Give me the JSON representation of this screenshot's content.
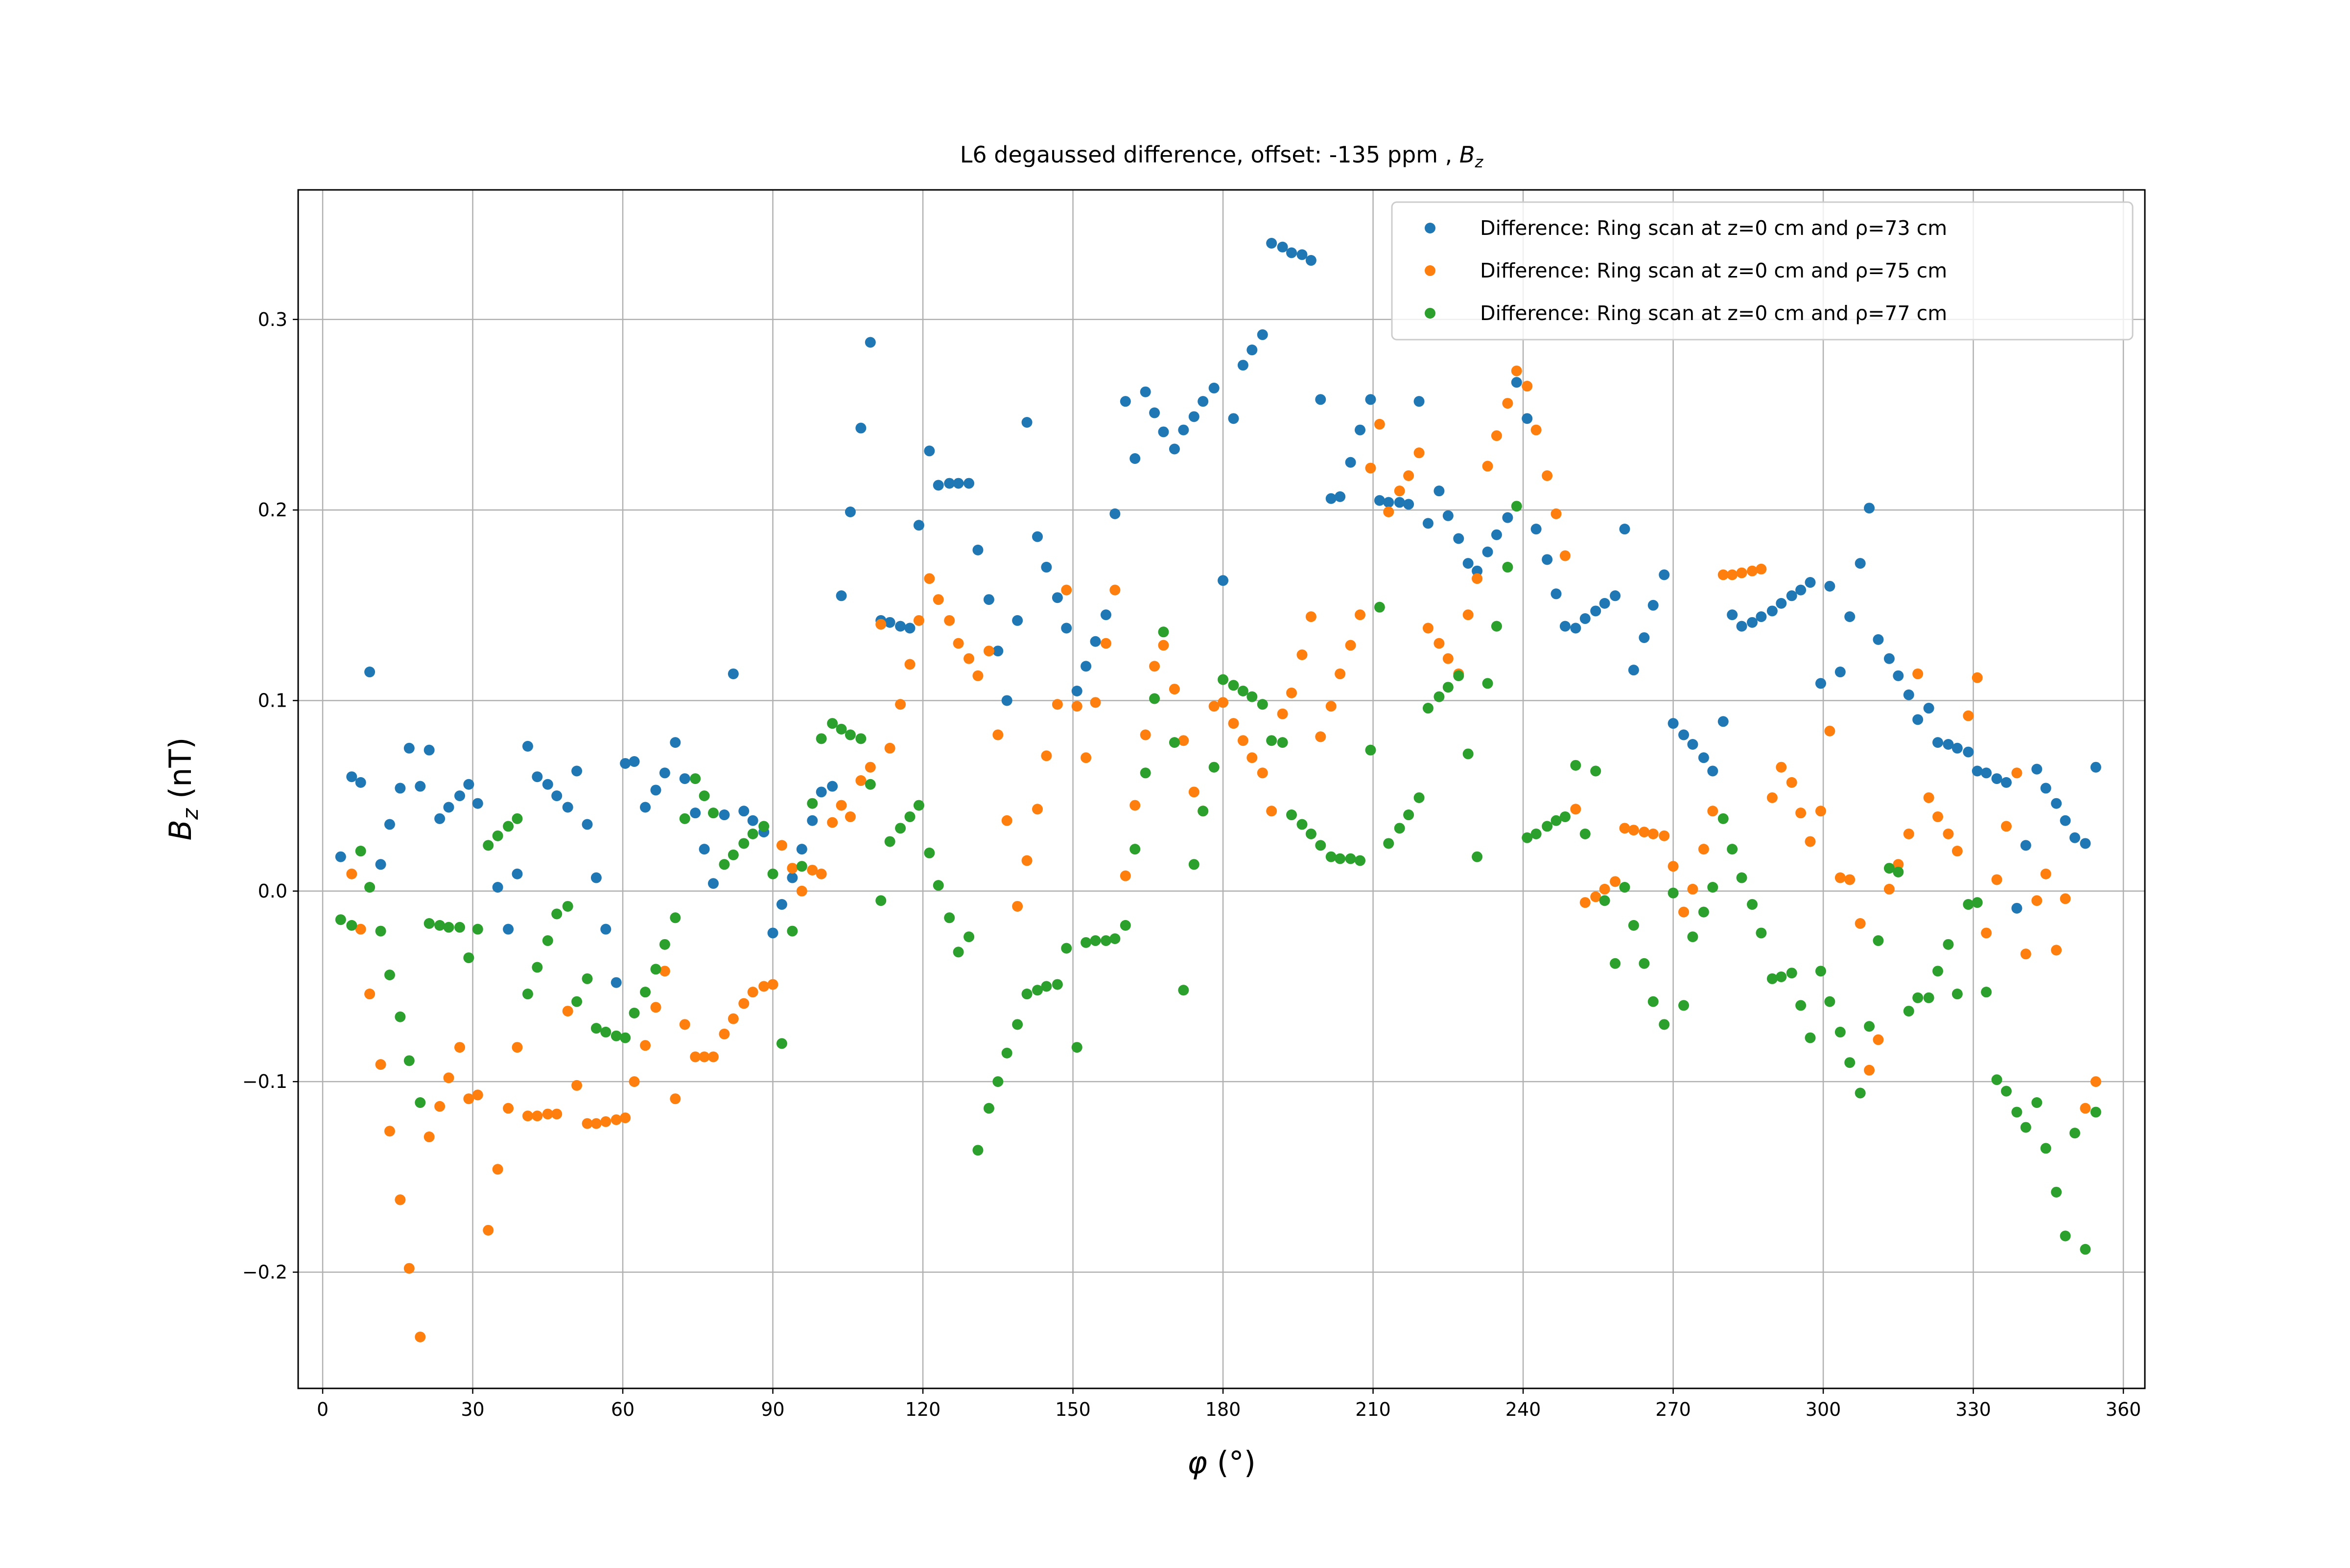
{
  "chart_data": {
    "type": "scatter",
    "title": {
      "text": "L6 degaussed difference, offset: -135 ppm , ",
      "symbol": "B",
      "subscript": "z"
    },
    "xlabel": {
      "symbol": "φ",
      "text": " (°)"
    },
    "ylabel": {
      "symbol": "B",
      "subscript": "z",
      "text": " (nT)"
    },
    "xlim": [
      -4.9,
      364.3
    ],
    "ylim": [
      -0.261,
      0.368
    ],
    "xticks": [
      0,
      30,
      60,
      90,
      120,
      150,
      180,
      210,
      240,
      270,
      300,
      330,
      360
    ],
    "yticks": [
      {
        "value": -0.2,
        "label": "−0.2"
      },
      {
        "value": -0.1,
        "label": "−0.1"
      },
      {
        "value": 0,
        "label": "0.0"
      },
      0.1,
      0.2,
      0.3
    ],
    "grid": true,
    "legend": "upper right",
    "series": [
      {
        "name": "Difference: Ring scan at z=0 cm and ρ=73 cm",
        "color": "#1f77b4",
        "x": [
          3.6,
          5.8,
          7.6,
          9.4,
          11.6,
          13.4,
          15.5,
          17.3,
          19.5,
          21.3,
          23.4,
          25.2,
          27.4,
          29.2,
          31.0,
          35.0,
          37.1,
          38.9,
          41.0,
          42.9,
          45.0,
          46.8,
          49.0,
          50.8,
          52.9,
          54.7,
          56.6,
          58.7,
          60.5,
          62.3,
          64.5,
          66.6,
          68.4,
          70.5,
          72.4,
          74.5,
          76.3,
          78.1,
          80.3,
          82.1,
          84.2,
          86.0,
          88.2,
          90.0,
          91.8,
          93.9,
          95.8,
          97.9,
          99.7,
          101.9,
          103.7,
          105.5,
          107.6,
          109.5,
          111.6,
          113.4,
          115.5,
          117.4,
          119.2,
          121.3,
          123.1,
          125.3,
          127.1,
          129.2,
          131.0,
          133.2,
          135.0,
          136.8,
          138.9,
          140.8,
          142.9,
          144.7,
          146.9,
          148.7,
          150.8,
          152.6,
          154.5,
          156.6,
          158.4,
          160.5,
          162.4,
          164.5,
          166.3,
          168.1,
          170.3,
          172.1,
          174.2,
          176.0,
          178.2,
          180.0,
          182.1,
          184.0,
          185.8,
          187.9,
          189.7,
          191.9,
          193.7,
          195.8,
          197.6,
          199.5,
          201.6,
          203.4,
          205.5,
          207.4,
          209.5,
          211.3,
          213.1,
          215.3,
          217.1,
          219.2,
          221.0,
          223.2,
          225.0,
          227.1,
          229.0,
          230.8,
          232.9,
          234.7,
          236.9,
          238.7,
          240.8,
          242.6,
          244.8,
          246.6,
          248.4,
          250.5,
          252.4,
          254.5,
          256.3,
          258.4,
          260.3,
          262.1,
          264.2,
          266.0,
          268.2,
          270.0,
          272.1,
          273.9,
          276.1,
          277.9,
          280.0,
          281.8,
          283.7,
          285.8,
          287.6,
          289.8,
          291.6,
          293.7,
          295.5,
          297.4,
          299.5,
          301.3,
          303.4,
          305.3,
          307.4,
          309.2,
          311.0,
          313.2,
          315.0,
          317.1,
          318.9,
          321.1,
          322.9,
          325.0,
          326.8,
          329.0,
          330.8,
          332.6,
          334.7,
          336.6,
          338.7,
          340.5,
          342.7,
          344.5,
          346.6,
          348.4,
          350.3,
          352.4,
          354.5
        ],
        "values": [
          0.018,
          0.06,
          0.057,
          0.115,
          0.014,
          0.035,
          0.054,
          0.075,
          0.055,
          0.074,
          0.038,
          0.044,
          0.05,
          0.056,
          0.046,
          0.002,
          -0.02,
          0.009,
          0.076,
          0.06,
          0.056,
          0.05,
          0.044,
          0.063,
          0.035,
          0.007,
          -0.02,
          -0.048,
          0.067,
          0.068,
          0.044,
          0.053,
          0.062,
          0.078,
          0.059,
          0.041,
          0.022,
          0.004,
          0.04,
          0.114,
          0.042,
          0.037,
          0.031,
          -0.022,
          -0.007,
          0.007,
          0.022,
          0.037,
          0.052,
          0.055,
          0.155,
          0.199,
          0.243,
          0.288,
          0.142,
          0.141,
          0.139,
          0.138,
          0.192,
          0.231,
          0.213,
          0.214,
          0.214,
          0.214,
          0.179,
          0.153,
          0.126,
          0.1,
          0.142,
          0.246,
          0.186,
          0.17,
          0.154,
          0.138,
          0.105,
          0.118,
          0.131,
          0.145,
          0.198,
          0.257,
          0.227,
          0.262,
          0.251,
          0.241,
          0.232,
          0.242,
          0.249,
          0.257,
          0.264,
          0.163,
          0.248,
          0.276,
          0.284,
          0.292,
          0.34,
          0.338,
          0.335,
          0.334,
          0.331,
          0.258,
          0.206,
          0.207,
          0.225,
          0.242,
          0.258,
          0.205,
          0.204,
          0.204,
          0.203,
          0.257,
          0.193,
          0.21,
          0.197,
          0.185,
          0.172,
          0.168,
          0.178,
          0.187,
          0.196,
          0.267,
          0.248,
          0.19,
          0.174,
          0.156,
          0.139,
          0.138,
          0.143,
          0.147,
          0.151,
          0.155,
          0.19,
          0.116,
          0.133,
          0.15,
          0.166,
          0.088,
          0.082,
          0.077,
          0.07,
          0.063,
          0.089,
          0.145,
          0.139,
          0.141,
          0.144,
          0.147,
          0.151,
          0.155,
          0.158,
          0.162,
          0.109,
          0.16,
          0.115,
          0.144,
          0.172,
          0.201,
          0.132,
          0.122,
          0.113,
          0.103,
          0.09,
          0.096,
          0.078,
          0.077,
          0.075,
          0.073,
          0.063,
          0.062,
          0.059,
          0.057,
          -0.009,
          0.024,
          0.064,
          0.054,
          0.046,
          0.037,
          0.028,
          0.025,
          0.065
        ]
      },
      {
        "name": "Difference: Ring scan at z=0 cm and ρ=75 cm",
        "color": "#ff7f0e",
        "x": [
          5.8,
          7.6,
          9.4,
          11.6,
          13.4,
          15.5,
          17.3,
          19.5,
          21.3,
          23.4,
          25.2,
          27.4,
          29.2,
          31.0,
          33.1,
          35.0,
          37.1,
          38.9,
          41.0,
          42.9,
          45.0,
          46.8,
          49.0,
          50.8,
          52.9,
          54.7,
          56.6,
          58.7,
          60.5,
          62.3,
          64.5,
          66.6,
          68.4,
          70.5,
          72.4,
          74.5,
          76.3,
          78.1,
          80.3,
          82.1,
          84.2,
          86.0,
          88.2,
          90.0,
          91.8,
          93.9,
          95.8,
          97.9,
          99.7,
          101.9,
          103.7,
          105.5,
          107.6,
          109.5,
          111.6,
          113.4,
          115.5,
          117.4,
          119.2,
          121.3,
          123.1,
          125.3,
          127.1,
          129.2,
          131.0,
          133.2,
          135.0,
          136.8,
          138.9,
          140.8,
          142.9,
          144.7,
          146.9,
          148.7,
          150.8,
          152.6,
          154.5,
          156.6,
          158.4,
          160.5,
          162.4,
          164.5,
          166.3,
          168.1,
          170.3,
          172.1,
          174.2,
          176.0,
          178.2,
          180.0,
          182.1,
          184.0,
          185.8,
          187.9,
          189.7,
          191.9,
          193.7,
          195.8,
          197.6,
          199.5,
          201.6,
          203.4,
          205.5,
          207.4,
          209.5,
          211.3,
          213.1,
          215.3,
          217.1,
          219.2,
          221.0,
          223.2,
          225.0,
          227.1,
          229.0,
          230.8,
          232.9,
          234.7,
          236.9,
          238.7,
          240.8,
          242.6,
          244.8,
          246.6,
          248.4,
          250.5,
          252.4,
          254.5,
          256.3,
          258.4,
          260.3,
          262.1,
          264.2,
          266.0,
          268.2,
          270.0,
          272.1,
          273.9,
          276.1,
          277.9,
          280.0,
          281.8,
          283.7,
          285.8,
          287.6,
          289.8,
          291.6,
          293.7,
          295.5,
          297.4,
          299.5,
          301.3,
          303.4,
          305.3,
          307.4,
          309.2,
          311.0,
          313.2,
          315.0,
          317.1,
          318.9,
          321.1,
          322.9,
          325.0,
          326.8,
          329.0,
          330.8,
          332.6,
          334.7,
          336.6,
          338.7,
          340.5,
          342.7,
          344.5,
          346.6,
          348.4,
          352.4,
          354.5
        ],
        "values": [
          0.009,
          -0.02,
          -0.054,
          -0.091,
          -0.126,
          -0.162,
          -0.198,
          -0.234,
          -0.129,
          -0.113,
          -0.098,
          -0.082,
          -0.109,
          -0.107,
          -0.178,
          -0.146,
          -0.114,
          -0.082,
          -0.118,
          -0.118,
          -0.117,
          -0.117,
          -0.063,
          -0.102,
          -0.122,
          -0.122,
          -0.121,
          -0.12,
          -0.119,
          -0.1,
          -0.081,
          -0.061,
          -0.042,
          -0.109,
          -0.07,
          -0.087,
          -0.087,
          -0.087,
          -0.075,
          -0.067,
          -0.059,
          -0.053,
          -0.05,
          -0.049,
          0.024,
          0.012,
          0.0,
          0.011,
          0.009,
          0.036,
          0.045,
          0.039,
          0.058,
          0.065,
          0.14,
          0.075,
          0.098,
          0.119,
          0.142,
          0.164,
          0.153,
          0.142,
          0.13,
          0.122,
          0.113,
          0.126,
          0.082,
          0.037,
          -0.008,
          0.016,
          0.043,
          0.071,
          0.098,
          0.158,
          0.097,
          0.07,
          0.099,
          0.13,
          0.158,
          0.008,
          0.045,
          0.082,
          0.118,
          0.129,
          0.106,
          0.079,
          0.052,
          0.042,
          0.097,
          0.099,
          0.088,
          0.079,
          0.07,
          0.062,
          0.042,
          0.093,
          0.104,
          0.124,
          0.144,
          0.081,
          0.097,
          0.114,
          0.129,
          0.145,
          0.222,
          0.245,
          0.199,
          0.21,
          0.218,
          0.23,
          0.138,
          0.13,
          0.122,
          0.114,
          0.145,
          0.164,
          0.223,
          0.239,
          0.256,
          0.273,
          0.265,
          0.242,
          0.218,
          0.198,
          0.176,
          0.043,
          -0.006,
          -0.003,
          0.001,
          0.005,
          0.033,
          0.032,
          0.031,
          0.03,
          0.029,
          0.013,
          -0.011,
          0.001,
          0.022,
          0.042,
          0.166,
          0.166,
          0.167,
          0.168,
          0.169,
          0.049,
          0.065,
          0.057,
          0.041,
          0.026,
          0.042,
          0.084,
          0.007,
          0.006,
          -0.017,
          -0.094,
          -0.078,
          0.001,
          0.014,
          0.03,
          0.114,
          0.049,
          0.039,
          0.03,
          0.021,
          0.092,
          0.112,
          -0.022,
          0.006,
          0.034,
          0.062,
          -0.033,
          -0.005,
          0.009,
          -0.031,
          -0.004,
          -0.114,
          -0.1
        ]
      },
      {
        "name": "Difference: Ring scan at z=0 cm and ρ=77 cm",
        "color": "#2ca02c",
        "x": [
          3.6,
          5.8,
          7.6,
          9.4,
          11.6,
          13.4,
          15.5,
          17.3,
          19.5,
          21.3,
          23.4,
          25.2,
          27.4,
          29.2,
          31.0,
          33.1,
          35.0,
          37.1,
          38.9,
          41.0,
          42.9,
          45.0,
          46.8,
          49.0,
          50.8,
          52.9,
          54.7,
          56.6,
          58.7,
          60.5,
          62.3,
          64.5,
          66.6,
          68.4,
          70.5,
          72.4,
          74.5,
          76.3,
          78.1,
          80.3,
          82.1,
          84.2,
          86.0,
          88.2,
          90.0,
          91.8,
          93.9,
          95.8,
          97.9,
          99.7,
          101.9,
          103.7,
          105.5,
          107.6,
          109.5,
          111.6,
          113.4,
          115.5,
          117.4,
          119.2,
          121.3,
          123.1,
          125.3,
          127.1,
          129.2,
          131.0,
          133.2,
          135.0,
          136.8,
          138.9,
          140.8,
          142.9,
          144.7,
          146.9,
          148.7,
          150.8,
          152.6,
          154.5,
          156.6,
          158.4,
          160.5,
          162.4,
          164.5,
          166.3,
          168.1,
          170.3,
          172.1,
          174.2,
          176.0,
          178.2,
          180.0,
          182.1,
          184.0,
          185.8,
          187.9,
          189.7,
          191.9,
          193.7,
          195.8,
          197.6,
          199.5,
          201.6,
          203.4,
          205.5,
          207.4,
          209.5,
          211.3,
          213.1,
          215.3,
          217.1,
          219.2,
          221.0,
          223.2,
          225.0,
          227.1,
          229.0,
          230.8,
          232.9,
          234.7,
          236.9,
          238.7,
          240.8,
          242.6,
          244.8,
          246.6,
          248.4,
          250.5,
          252.4,
          254.5,
          256.3,
          258.4,
          260.3,
          262.1,
          264.2,
          266.0,
          268.2,
          270.0,
          272.1,
          273.9,
          276.1,
          277.9,
          280.0,
          281.8,
          283.7,
          285.8,
          287.6,
          289.8,
          291.6,
          293.7,
          295.5,
          297.4,
          299.5,
          301.3,
          303.4,
          305.3,
          307.4,
          309.2,
          311.0,
          313.2,
          315.0,
          317.1,
          318.9,
          321.1,
          322.9,
          325.0,
          326.8,
          329.0,
          330.8,
          332.6,
          334.7,
          336.6,
          338.7,
          340.5,
          342.7,
          344.5,
          346.6,
          348.4,
          350.3,
          352.4,
          354.5
        ],
        "values": [
          -0.015,
          -0.018,
          0.021,
          0.002,
          -0.021,
          -0.044,
          -0.066,
          -0.089,
          -0.111,
          -0.017,
          -0.018,
          -0.019,
          -0.019,
          -0.035,
          -0.02,
          0.024,
          0.029,
          0.034,
          0.038,
          -0.054,
          -0.04,
          -0.026,
          -0.012,
          -0.008,
          -0.058,
          -0.046,
          -0.072,
          -0.074,
          -0.076,
          -0.077,
          -0.064,
          -0.053,
          -0.041,
          -0.028,
          -0.014,
          0.038,
          0.059,
          0.05,
          0.041,
          0.014,
          0.019,
          0.025,
          0.03,
          0.034,
          0.009,
          -0.08,
          -0.021,
          0.013,
          0.046,
          0.08,
          0.088,
          0.085,
          0.082,
          0.08,
          0.056,
          -0.005,
          0.026,
          0.033,
          0.039,
          0.045,
          0.02,
          0.003,
          -0.014,
          -0.032,
          -0.024,
          -0.136,
          -0.114,
          -0.1,
          -0.085,
          -0.07,
          -0.054,
          -0.052,
          -0.05,
          -0.049,
          -0.03,
          -0.082,
          -0.027,
          -0.026,
          -0.026,
          -0.025,
          -0.018,
          0.022,
          0.062,
          0.101,
          0.136,
          0.078,
          -0.052,
          0.014,
          0.042,
          0.065,
          0.111,
          0.108,
          0.105,
          0.102,
          0.098,
          0.079,
          0.078,
          0.04,
          0.035,
          0.03,
          0.024,
          0.018,
          0.017,
          0.017,
          0.016,
          0.074,
          0.149,
          0.025,
          0.033,
          0.04,
          0.049,
          0.096,
          0.102,
          0.107,
          0.113,
          0.072,
          0.018,
          0.109,
          0.139,
          0.17,
          0.202,
          0.028,
          0.03,
          0.034,
          0.037,
          0.039,
          0.066,
          0.03,
          0.063,
          -0.005,
          -0.038,
          0.002,
          -0.018,
          -0.038,
          -0.058,
          -0.07,
          -0.001,
          -0.06,
          -0.024,
          -0.011,
          0.002,
          0.038,
          0.022,
          0.007,
          -0.007,
          -0.022,
          -0.046,
          -0.045,
          -0.043,
          -0.06,
          -0.077,
          -0.042,
          -0.058,
          -0.074,
          -0.09,
          -0.106,
          -0.071,
          -0.026,
          0.012,
          0.01,
          -0.063,
          -0.056,
          -0.056,
          -0.042,
          -0.028,
          -0.054,
          -0.007,
          -0.006,
          -0.053,
          -0.099,
          -0.105,
          -0.116,
          -0.124,
          -0.111,
          -0.135,
          -0.158,
          -0.181,
          -0.127,
          -0.188,
          -0.116
        ]
      }
    ]
  }
}
